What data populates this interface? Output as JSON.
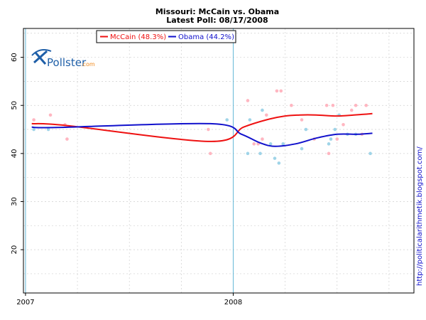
{
  "chart_data": {
    "type": "scatter",
    "title": "Missouri: McCain vs. Obama",
    "subtitle": "Latest Poll: 08/17/2008",
    "xlabel": "",
    "ylabel": "",
    "xlim": [
      2006.99,
      2008.87
    ],
    "ylim": [
      11,
      66
    ],
    "x_ticks": [
      {
        "value": 2007,
        "label": "2007"
      },
      {
        "value": 2008,
        "label": "2008"
      }
    ],
    "y_ticks": [
      {
        "value": 20,
        "label": "20"
      },
      {
        "value": 30,
        "label": "30"
      },
      {
        "value": 40,
        "label": "40"
      },
      {
        "value": 50,
        "label": "50"
      },
      {
        "value": 60,
        "label": "60"
      }
    ],
    "year_markers": [
      2007,
      2008
    ],
    "legend": [
      {
        "name": "McCain",
        "label": "McCain (48.3%)",
        "color": "#ee1111"
      },
      {
        "name": "Obama",
        "label": "Obama (44.2%)",
        "color": "#1111cc"
      }
    ],
    "series": [
      {
        "name": "McCain",
        "line_color": "#ee1111",
        "point_color": "#ffb6c1",
        "trend": [
          [
            2007.03,
            46.2
          ],
          [
            2007.2,
            45.8
          ],
          [
            2007.89,
            42.5
          ],
          [
            2008.05,
            45.5
          ],
          [
            2008.16,
            47.0
          ],
          [
            2008.25,
            47.8
          ],
          [
            2008.32,
            48.0
          ],
          [
            2008.4,
            48.0
          ],
          [
            2008.5,
            47.8
          ],
          [
            2008.58,
            48.0
          ],
          [
            2008.67,
            48.3
          ]
        ],
        "points": [
          [
            2007.04,
            47
          ],
          [
            2007.12,
            48
          ],
          [
            2007.2,
            43
          ],
          [
            2007.19,
            46
          ],
          [
            2007.88,
            45
          ],
          [
            2007.89,
            40
          ],
          [
            2008.07,
            51
          ],
          [
            2008.1,
            42
          ],
          [
            2008.12,
            42
          ],
          [
            2008.14,
            43
          ],
          [
            2008.21,
            53
          ],
          [
            2008.23,
            53
          ],
          [
            2008.28,
            50
          ],
          [
            2008.33,
            47
          ],
          [
            2008.39,
            43
          ],
          [
            2008.45,
            50
          ],
          [
            2008.46,
            40
          ],
          [
            2008.48,
            50
          ],
          [
            2008.5,
            43
          ],
          [
            2008.53,
            46
          ],
          [
            2008.57,
            49
          ],
          [
            2008.59,
            50
          ],
          [
            2008.64,
            50
          ],
          [
            2008.62,
            44
          ],
          [
            2008.16,
            48
          ]
        ]
      },
      {
        "name": "Obama",
        "line_color": "#1111cc",
        "point_color": "#9fd4e8",
        "trend": [
          [
            2007.03,
            45.5
          ],
          [
            2007.15,
            45.4
          ],
          [
            2007.89,
            46.2
          ],
          [
            2008.04,
            44.0
          ],
          [
            2008.13,
            42.2
          ],
          [
            2008.2,
            41.5
          ],
          [
            2008.3,
            42.0
          ],
          [
            2008.4,
            43.2
          ],
          [
            2008.5,
            44.0
          ],
          [
            2008.6,
            44.0
          ],
          [
            2008.67,
            44.2
          ]
        ],
        "points": [
          [
            2007.04,
            45
          ],
          [
            2007.11,
            45
          ],
          [
            2007.97,
            47
          ],
          [
            2008.07,
            40
          ],
          [
            2008.08,
            47
          ],
          [
            2008.13,
            40
          ],
          [
            2008.14,
            49
          ],
          [
            2008.18,
            42
          ],
          [
            2008.2,
            39
          ],
          [
            2008.22,
            38
          ],
          [
            2008.24,
            42
          ],
          [
            2008.33,
            41
          ],
          [
            2008.35,
            45
          ],
          [
            2008.46,
            42
          ],
          [
            2008.47,
            43
          ],
          [
            2008.49,
            45
          ],
          [
            2008.51,
            48
          ],
          [
            2008.55,
            44
          ],
          [
            2008.59,
            44
          ],
          [
            2008.66,
            40
          ]
        ]
      }
    ]
  },
  "branding": {
    "logo_text": "Pollster",
    "logo_domain": ".com",
    "side_url": "http://politicalarithmetik.blogspot.com/"
  },
  "colors": {
    "grid": "#d0d0d0",
    "year_marker": "#66b8d8",
    "logo_blue": "#1f5fa8",
    "logo_orange": "#f08a1c"
  }
}
